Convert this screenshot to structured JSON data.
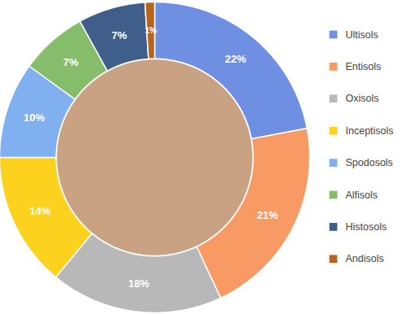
{
  "chart_data": {
    "type": "pie",
    "categories": [
      "Ultisols",
      "Entisols",
      "Oxisols",
      "Inceptisols",
      "Spodosols",
      "Alfisols",
      "Histosols",
      "Andisols"
    ],
    "values": [
      22,
      21,
      18,
      14,
      10,
      7,
      7,
      1
    ],
    "value_labels": [
      "22%",
      "21%",
      "18%",
      "14%",
      "10%",
      "7%",
      "7%",
      "1%"
    ],
    "colors": [
      "#6f8fe3",
      "#f79a63",
      "#b8b8b8",
      "#fdd21f",
      "#80b0f0",
      "#86bd6a",
      "#3f5f8a",
      "#b5651d"
    ],
    "data_labels": true,
    "legend": "right"
  }
}
